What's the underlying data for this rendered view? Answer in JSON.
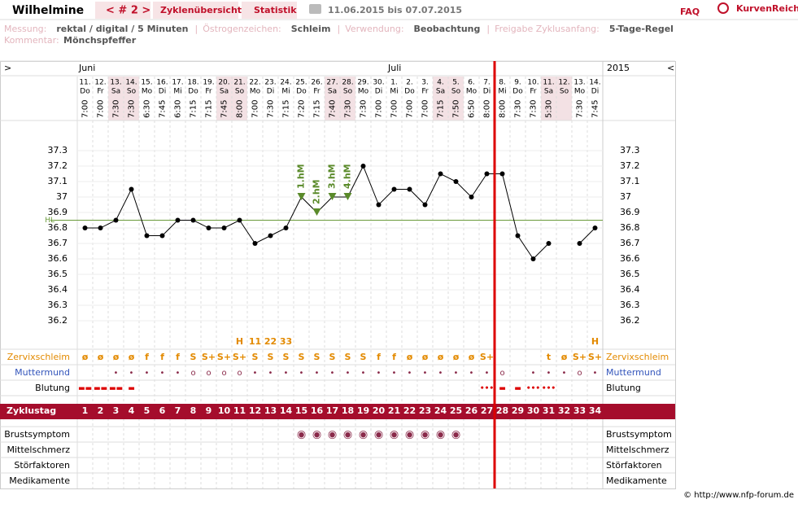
{
  "header": {
    "user": "Wilhelmine",
    "cycle_nav": "< # 2 >",
    "tabs": [
      "Zyklenübersicht",
      "Statistik"
    ],
    "date_range": "11.06.2015 bis 07.07.2015",
    "faq": "FAQ",
    "brand": "KurvenReich"
  },
  "settings": [
    {
      "label": "Messung:",
      "value": "rektal / digital / 5 Minuten"
    },
    {
      "label": "Östrogenzeichen:",
      "value": "Schleim"
    },
    {
      "label": "Verwendung:",
      "value": "Beobachtung"
    },
    {
      "label": "Freigabe Zyklusanfang:",
      "value": "5-Tage-Regel"
    }
  ],
  "separator": "|",
  "comment": {
    "label": "Kommentar:",
    "value": "Mönchspfeffer"
  },
  "chart": {
    "nav_left": ">",
    "nav_right": "<",
    "year": "2015",
    "month_labels": [
      "Juni",
      null,
      null,
      null,
      null,
      null,
      null,
      null,
      null,
      null,
      null,
      null,
      null,
      null,
      null,
      null,
      null,
      null,
      null,
      null,
      "Juli",
      null,
      null,
      null,
      null,
      null,
      null,
      null,
      null,
      null,
      null,
      null,
      null,
      null
    ],
    "dates": [
      "11.",
      "12.",
      "13.",
      "14.",
      "15.",
      "16.",
      "17.",
      "18.",
      "19.",
      "20.",
      "21.",
      "22.",
      "23.",
      "24.",
      "25.",
      "26.",
      "27.",
      "28.",
      "29.",
      "30.",
      "1.",
      "2.",
      "3.",
      "4.",
      "5.",
      "6.",
      "7.",
      "8.",
      "9.",
      "10.",
      "11.",
      "12.",
      "13.",
      "14."
    ],
    "weekdays": [
      "Do",
      "Fr",
      "Sa",
      "So",
      "Mo",
      "Di",
      "Mi",
      "Do",
      "Fr",
      "Sa",
      "So",
      "Mo",
      "Di",
      "Mi",
      "Do",
      "Fr",
      "Sa",
      "So",
      "Mo",
      "Di",
      "Mi",
      "Do",
      "Fr",
      "Sa",
      "So",
      "Mo",
      "Di",
      "Mi",
      "Do",
      "Fr",
      "Sa",
      "So",
      "Mo",
      "Di"
    ],
    "shaded": [
      2,
      3,
      9,
      10,
      16,
      17,
      23,
      24,
      30,
      31
    ],
    "times": [
      "7:00",
      "7:00",
      "7:30",
      "7:30",
      "6:30",
      "7:45",
      "6:30",
      "7:15",
      "7:15",
      "7:45",
      "8:00",
      "7:00",
      "7:30",
      "7:15",
      "7:20",
      "7:15",
      "7:40",
      "7:30",
      "7:30",
      "7:00",
      "7:00",
      "7:00",
      "7:00",
      "7:15",
      "7:50",
      "6:50",
      "8:00",
      "8:00",
      "7:30",
      "7:30",
      "5:30",
      null,
      "7:30",
      "7:45"
    ],
    "temperatures": [
      36.8,
      36.8,
      36.85,
      37.05,
      36.75,
      36.75,
      36.85,
      36.85,
      36.8,
      36.8,
      36.85,
      36.7,
      36.75,
      36.8,
      37.0,
      36.9,
      37.0,
      37.0,
      37.2,
      36.95,
      37.05,
      37.05,
      36.95,
      37.15,
      37.1,
      37.0,
      37.15,
      37.15,
      36.75,
      36.6,
      36.7,
      null,
      36.7,
      36.8
    ],
    "peak_labels": [
      null,
      null,
      null,
      null,
      null,
      null,
      null,
      null,
      null,
      null,
      null,
      null,
      null,
      null,
      "1.hM",
      "2.hM",
      "3.hM",
      "4.hM",
      null,
      null,
      null,
      null,
      null,
      null,
      null,
      null,
      null,
      null,
      null,
      null,
      null,
      null,
      null,
      null
    ],
    "ylim": [
      36.1,
      37.5
    ],
    "yticks": [
      37.3,
      37.2,
      37.1,
      37,
      36.9,
      36.8,
      36.7,
      36.6,
      36.5,
      36.4,
      36.3,
      36.2
    ],
    "coverline": {
      "label": "HL",
      "value": 36.85
    },
    "markers": [
      null,
      null,
      null,
      null,
      null,
      null,
      null,
      null,
      null,
      null,
      "H",
      "11",
      "22",
      "33",
      null,
      null,
      null,
      null,
      null,
      null,
      null,
      null,
      null,
      null,
      null,
      null,
      null,
      null,
      null,
      null,
      null,
      null,
      null,
      "H"
    ],
    "rows": [
      {
        "label": "Zervixschleim",
        "values": [
          "ø",
          "ø",
          "ø",
          "ø",
          "f",
          "f",
          "f",
          "S",
          "S+",
          "S+",
          "S+",
          "S",
          "S",
          "S",
          "S",
          "S",
          "S",
          "S",
          "S",
          "f",
          "f",
          "ø",
          "ø",
          "ø",
          "ø",
          "ø",
          "S+",
          null,
          null,
          null,
          "t",
          "ø",
          "S+",
          "S+"
        ]
      },
      {
        "label": "Muttermund",
        "values": [
          null,
          null,
          "•",
          "•",
          "•",
          "•",
          "•",
          "o",
          "o",
          "o",
          "o",
          "•",
          "•",
          "•",
          "•",
          "•",
          "•",
          "•",
          "•",
          "•",
          "•",
          "•",
          "•",
          "•",
          "•",
          "•",
          "•",
          "o",
          null,
          "•",
          "•",
          "•",
          "o",
          "•"
        ]
      },
      {
        "label": "Blutung",
        "values": [
          "▬▬",
          "▬▬",
          "▬▬",
          "▬",
          null,
          null,
          null,
          null,
          null,
          null,
          null,
          null,
          null,
          null,
          null,
          null,
          null,
          null,
          null,
          null,
          null,
          null,
          null,
          null,
          null,
          null,
          "•••",
          "▬",
          "▬",
          "•••",
          "•••",
          null,
          null,
          null
        ]
      },
      {
        "label": "Zyklustag",
        "values": [
          1,
          2,
          3,
          4,
          5,
          6,
          7,
          8,
          9,
          10,
          11,
          12,
          13,
          14,
          15,
          16,
          17,
          18,
          19,
          20,
          21,
          22,
          23,
          24,
          25,
          26,
          27,
          28,
          29,
          30,
          31,
          32,
          33,
          34
        ]
      },
      {
        "label": "Brustsymptom",
        "values": [
          null,
          null,
          null,
          null,
          null,
          null,
          null,
          null,
          null,
          null,
          null,
          null,
          null,
          null,
          "◉",
          "◉",
          "◉",
          "◉",
          "◉",
          "◉",
          "◉",
          "◉",
          "◉",
          "◉",
          "◉",
          null,
          null,
          null,
          null,
          null,
          null,
          null,
          null,
          null
        ]
      },
      {
        "label": "Mittelschmerz"
      },
      {
        "label": "Störfaktoren"
      },
      {
        "label": "Medikamente"
      }
    ]
  },
  "footer": "© http://www.nfp-forum.de"
}
